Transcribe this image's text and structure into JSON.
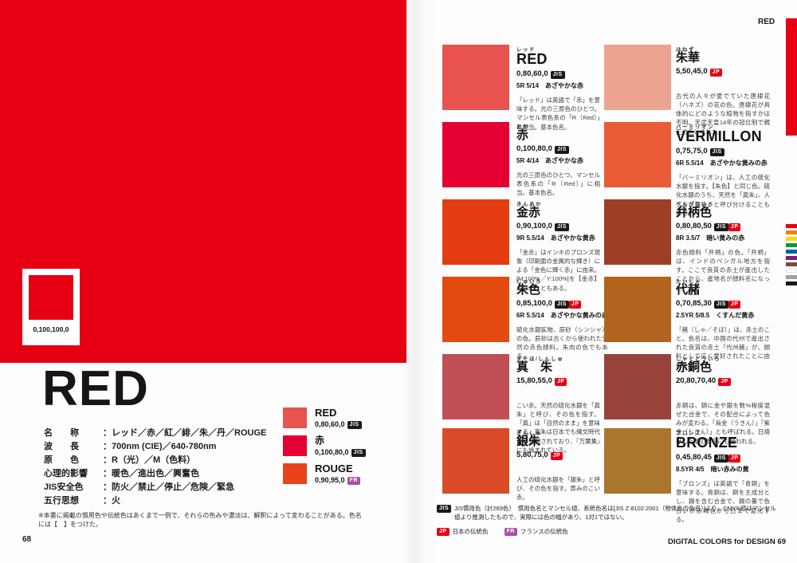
{
  "colors": {
    "hero": "#e60012"
  },
  "badge_colors": {
    "JIS": "#1a1a1a",
    "JP": "#e60012",
    "FR": "#a94fa4"
  },
  "page_left": {
    "page_number": "68",
    "hero_cmyk": "0,100,100,0",
    "title": "RED",
    "specs": [
      {
        "label": "名　　称",
        "value": "：レッド／赤／紅／緋／朱／丹／ROUGE"
      },
      {
        "label": "波　　長",
        "value": "：700nm (CIE)／640-780nm"
      },
      {
        "label": "原　　色",
        "value": "：R（光）／M（色料）"
      },
      {
        "label": "心理的影響",
        "value": "：暖色／進出色／興奮色"
      },
      {
        "label": "JIS安全色",
        "value": "：防火／禁止／停止／危険／緊急"
      },
      {
        "label": "五行思想",
        "value": "：火"
      }
    ],
    "footnote": "※本書に掲載の慣用色や伝統色はあくまで一例で、それらの色みや濃淡は、解釈によって変わることがある。色名には【　】をつけた。",
    "mini_swatches": [
      {
        "name": "RED",
        "latin": true,
        "cmyk": "0,80,60,0",
        "badges": [
          "JIS"
        ],
        "color": "#e8534e"
      },
      {
        "name": "赤",
        "latin": false,
        "cmyk": "0,100,80,0",
        "badges": [
          "JIS"
        ],
        "color": "#e60032"
      },
      {
        "name": "ROUGE",
        "latin": true,
        "cmyk": "0,90,95,0",
        "badges": [
          "FR"
        ],
        "color": "#e8431a"
      }
    ]
  },
  "page_right": {
    "page_number": "69",
    "book_title": "DIGITAL COLORS for DESIGN",
    "tab_label": "RED",
    "entries": [
      {
        "furigana": "レッド",
        "name": "RED",
        "latin": true,
        "cmyk": "0,80,60,0",
        "badges": [
          "JIS"
        ],
        "munsell": "5R 5/14　あざやかな赤",
        "desc": "「レッド」は英語で「赤」を意味する。光の三原色のひとつ。マンセル表色系の「R（Red）」に相当。基本色名。",
        "color": "#e8534e"
      },
      {
        "furigana": "はねず",
        "name": "朱華",
        "latin": false,
        "cmyk": "5,50,45,0",
        "badges": [
          "JP"
        ],
        "munsell": "",
        "desc": "古代の人々が愛でていた唐棣花（ハネズ）の花の色。唐棣花が具体的にどのような植物を指すかは不明。天武天皇14年の冠位制で親王の色とされた。",
        "color": "#eca491"
      },
      {
        "furigana": "あか",
        "name": "赤",
        "latin": false,
        "cmyk": "0,100,80,0",
        "badges": [
          "JIS"
        ],
        "munsell": "5R 4/14　あざやかな赤",
        "desc": "光の三原色のひとつ。マンセル表色系の「R（Red）」に相当。基本色名。",
        "color": "#e60032"
      },
      {
        "furigana": "バーミリオン",
        "name": "VERMILLON",
        "latin": true,
        "cmyk": "0,75,75,0",
        "badges": [
          "JIS"
        ],
        "munsell": "6R 5.5/14　あざやかな黄みの赤",
        "desc": "「バーミリオン」は、人工の硫化水銀を指す。【朱色】と同じ色。硫化水銀のうち、天然を「真朱」、人工を「銀朱」と呼び分けることもある。",
        "color": "#ea5c35"
      },
      {
        "furigana": "きんあか",
        "name": "金赤",
        "latin": false,
        "cmyk": "0,90,100,0",
        "badges": [
          "JIS"
        ],
        "munsell": "9R 5.5/14　あざやかな黄赤",
        "desc": "「金赤」はインキのブロンズ現象（印刷面の金属的な輝き）による「金色に輝く赤」に由来。[M:100%／Y:100%]を【金赤】と呼ぶこともある。",
        "color": "#e23c10"
      },
      {
        "furigana": "べんがらいろ",
        "name": "弁柄色",
        "latin": false,
        "cmyk": "0,80,80,50",
        "badges": [
          "JIS",
          "JP"
        ],
        "munsell": "8R 3.5/7　暗い黄みの赤",
        "desc": "赤色顔料「弁柄」の色。「弁柄」は、インドのベンガル地方を指す。ここで良質の赤土が産出したことから、産地名が顔料名になった。",
        "color": "#9e3e24"
      },
      {
        "furigana": "しゅいろ",
        "name": "朱色",
        "latin": false,
        "cmyk": "0,85,100,0",
        "badges": [
          "JIS",
          "JP"
        ],
        "munsell": "6R 5.5/14　あざやかな黄みの赤",
        "desc": "硫化水銀鉱物、辰砂（シンシャ）の色。辰砂は古くから使われた天然の赤色顔料。朱肉の色でもある。",
        "color": "#e24a10"
      },
      {
        "furigana": "たいしゃ",
        "name": "代赭",
        "latin": false,
        "cmyk": "0,70,85,30",
        "badges": [
          "JIS",
          "JP"
        ],
        "munsell": "2.5YR 5/8.5　くすんだ黄赤",
        "desc": "「赭（しゃ／そほ）」は、赤土のこと。色名は、中国の代州で産出された良質の赤土「代州赭」が、顔料として広く愛好されたことに由来する。",
        "color": "#b2641e"
      },
      {
        "furigana": "まそほ/しんしゅ",
        "name": "真　朱",
        "latin": false,
        "cmyk": "15,80,55,0",
        "badges": [
          "JP"
        ],
        "munsell": "",
        "desc": "こい赤。天然の硫化水銀を「真朱」と呼び、その色を指す。「真」は「自然のまま」を意味する。真朱は日本でも縄文時代から発掘されており、『万葉集』にも詠まれている。",
        "color": "#bf4f55"
      },
      {
        "furigana": "しゃくどういろ",
        "name": "赤銅色",
        "latin": false,
        "cmyk": "20,80,70,40",
        "badges": [
          "JP"
        ],
        "munsell": "",
        "desc": "赤銅は、銅に金や銀を数%程度混ぜた合金で、その配合によって色みが変わる。「烏金（うきん）」「紫金（しきん）」とも呼ばれる。日焼けした肌の形容にも使われる。",
        "color": "#97423b"
      },
      {
        "furigana": "ぎんしゅ",
        "name": "銀朱",
        "latin": false,
        "cmyk": "5,80,75,0",
        "badges": [
          "JP"
        ],
        "munsell": "",
        "desc": "人工の硫化水銀を「銀朱」と呼び、その色を指す。黄みのこい赤。",
        "color": "#da4a28"
      },
      {
        "furigana": "ブロンズ",
        "name": "BRONZE",
        "latin": true,
        "cmyk": "0,45,80,45",
        "badges": [
          "JIS",
          "JP"
        ],
        "munsell": "8.5YR 4/5　暗い赤みの黄",
        "desc": "「ブロンズ」は英語で「青銅」を意味する。青銅は、銅を主成分とし、錫を含む合金で、錫の量で色合いが赤褐色から白まで変化する。",
        "color": "#a9762b"
      }
    ],
    "legend": {
      "jis_badge": "JIS",
      "jis_text": "JIS慣用色（計269色）　慣用色名とマンセル値、系統色名は[JIS Z 8102:2001（物体色の色名）]より。CMYK値はマンセル値より推測したもので、実際には色の幅があり、1対1ではない。",
      "jp_badge": "JP",
      "jp_text": "日本の伝統色",
      "fr_badge": "FR",
      "fr_text": "フランスの伝統色"
    },
    "spectrum_colors": [
      "#e60012",
      "#ef8200",
      "#ffd900",
      "#009a3e",
      "#0062ac",
      "#7b1e7e",
      "#7a4b35",
      "#ffffff",
      "#9fa0a0",
      "#1a1a1a"
    ]
  }
}
